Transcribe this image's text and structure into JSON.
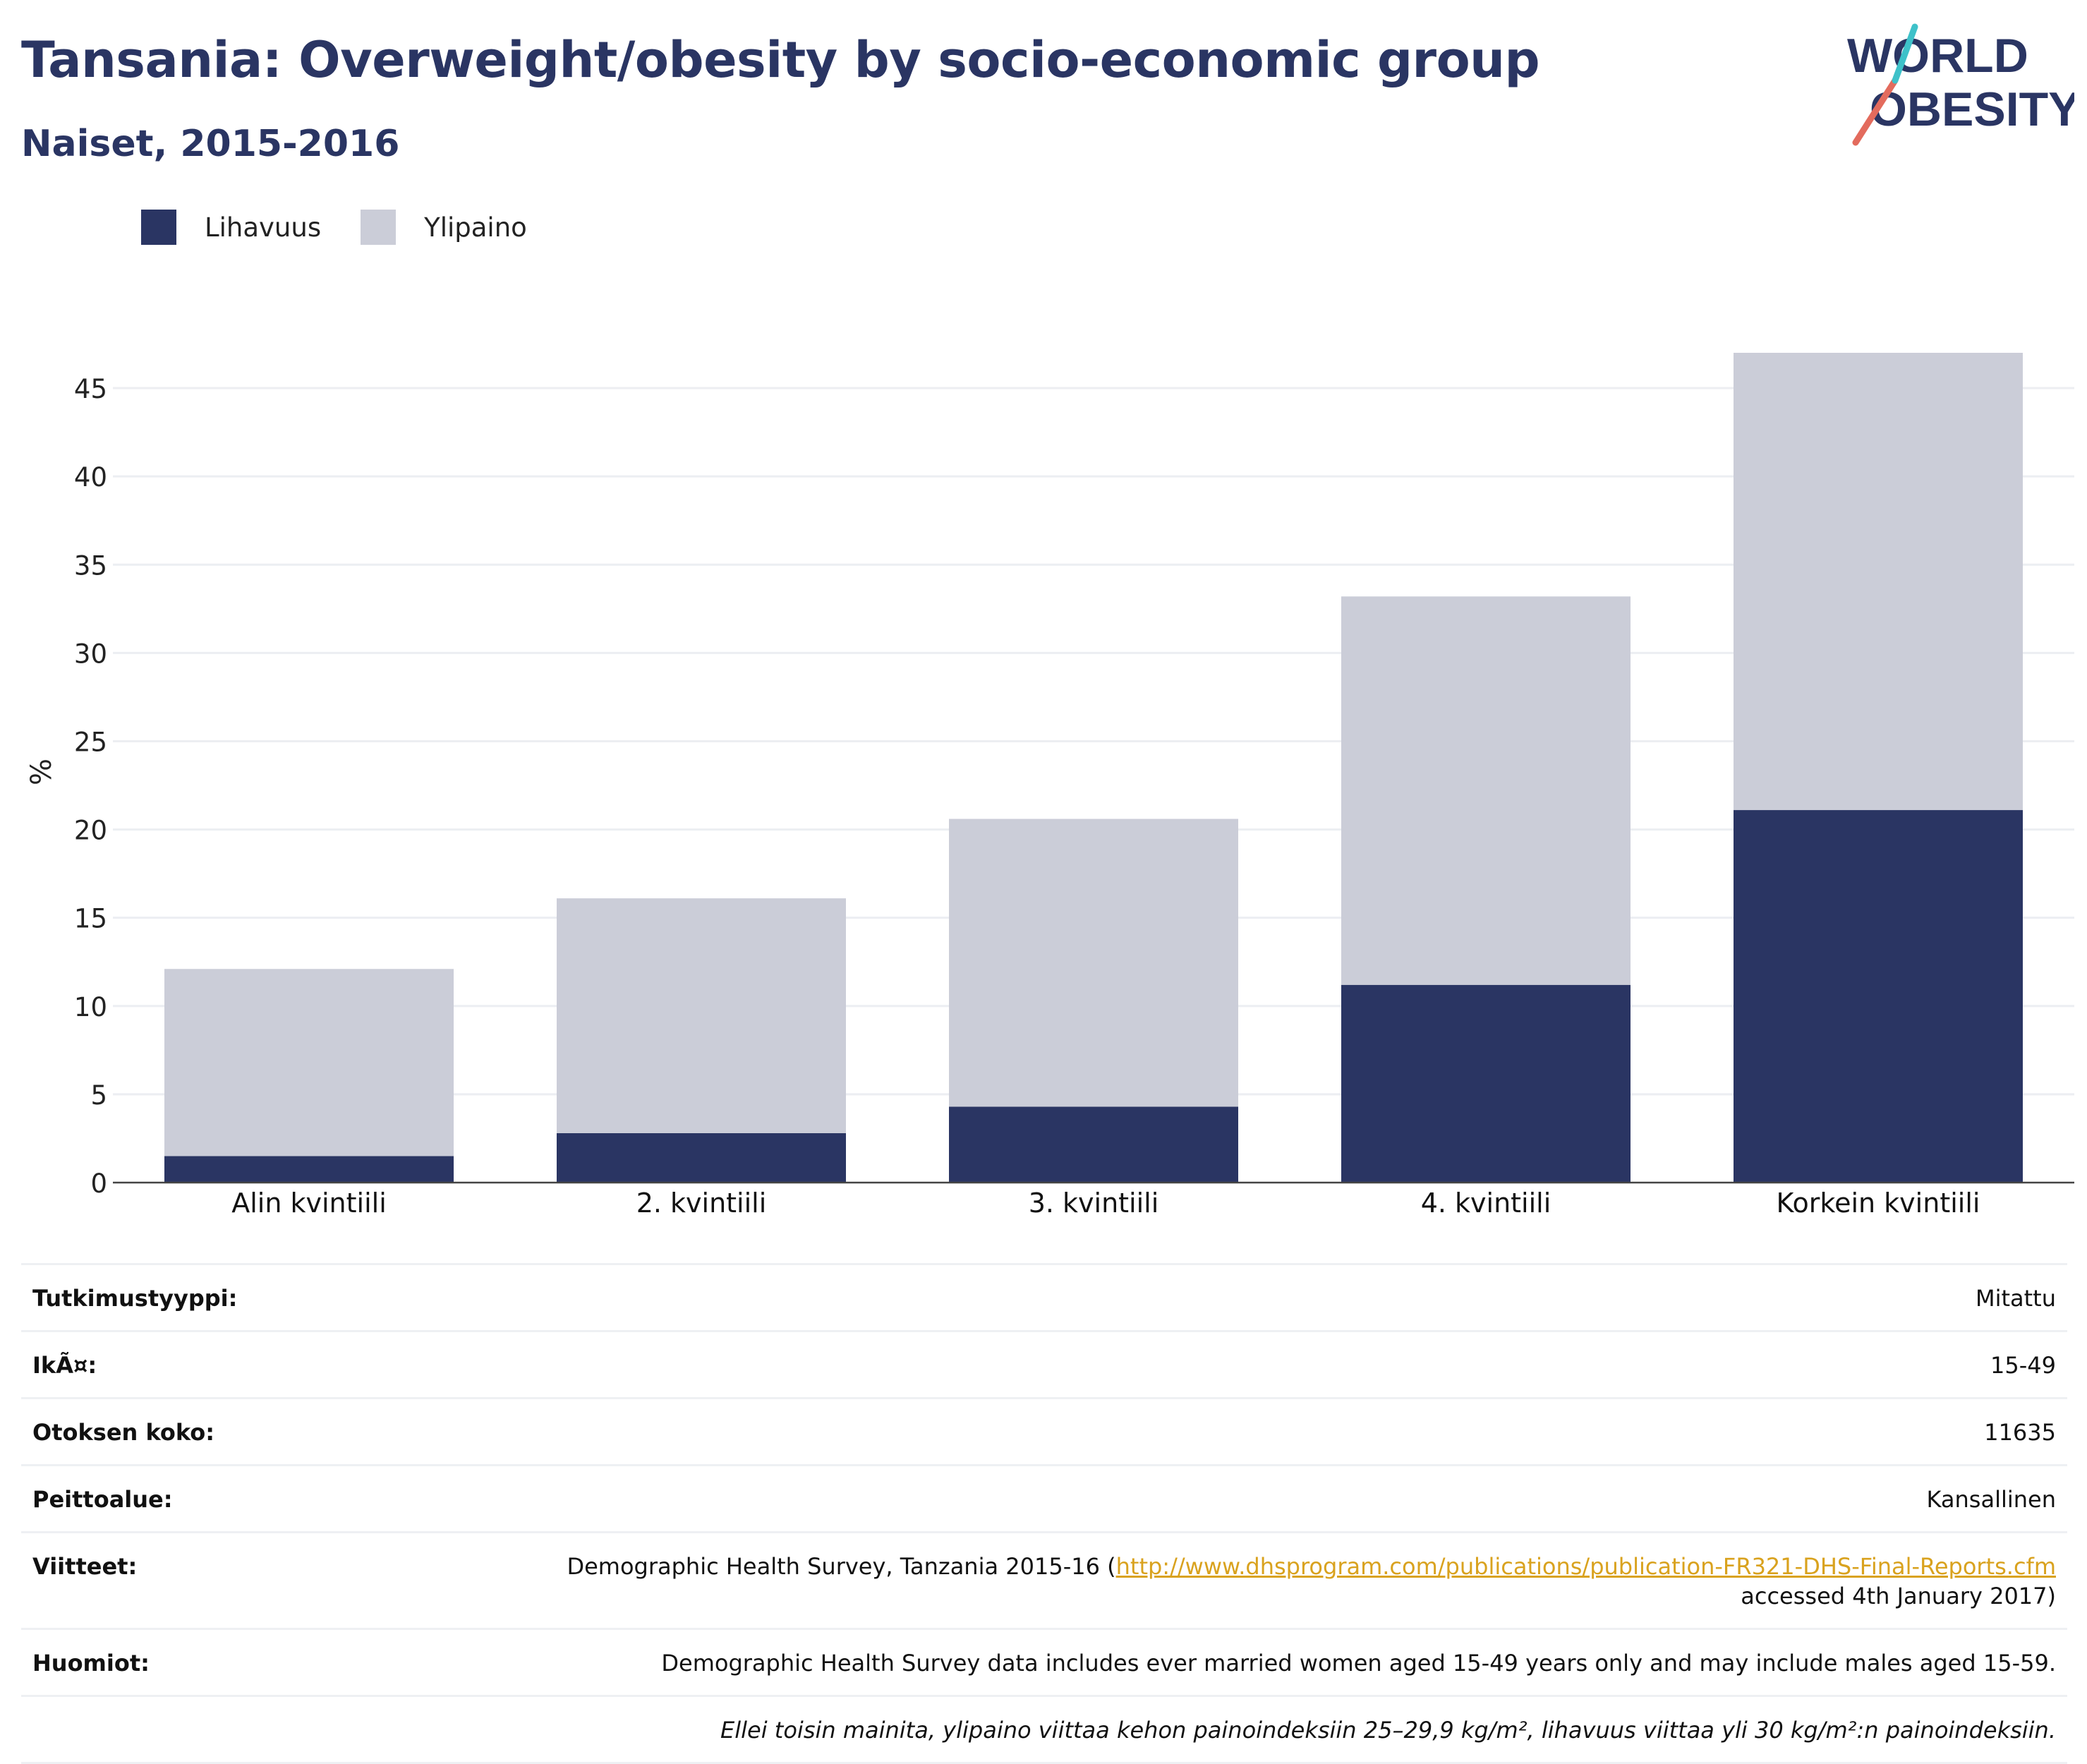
{
  "title": "Tansania: Overweight/obesity by socio-economic group",
  "subtitle": "Naiset, 2015-2016",
  "logo": {
    "line1": "WORLD",
    "line2": "OBESITY"
  },
  "colors": {
    "obesity": "#2a3563",
    "overweight": "#cbcdd8",
    "title": "#2a3563",
    "link": "#d9a21e"
  },
  "chart_data": {
    "type": "bar",
    "stacked": true,
    "categories": [
      "Alin kvintiili",
      "2. kvintiili",
      "3. kvintiili",
      "4. kvintiili",
      "Korkein kvintiili"
    ],
    "series": [
      {
        "name": "Lihavuus",
        "values": [
          1.5,
          2.8,
          4.3,
          11.2,
          21.1
        ]
      },
      {
        "name": "Ylipaino",
        "values": [
          10.6,
          13.3,
          16.3,
          22.0,
          25.9
        ]
      }
    ],
    "ylabel": "%",
    "ylim": [
      0,
      47
    ],
    "yticks": [
      0,
      5,
      10,
      15,
      20,
      25,
      30,
      35,
      40,
      45
    ],
    "grid": true,
    "legend_position": "top-left"
  },
  "meta": {
    "rows": [
      {
        "key": "Tutkimustyyppi:",
        "value": "Mitattu"
      },
      {
        "key": "IkÃ¤:",
        "value": "15-49"
      },
      {
        "key": "Otoksen koko:",
        "value": "11635"
      },
      {
        "key": "Peittoalue:",
        "value": "Kansallinen"
      }
    ],
    "references": {
      "key": "Viitteet:",
      "prefix": "Demographic Health Survey, Tanzania 2015-16 (",
      "link": "http://www.dhsprogram.com/publications/publication-FR321-DHS-Final-Reports.cfm",
      "suffix": "accessed 4th January 2017)"
    },
    "notes": {
      "key": "Huomiot:",
      "value": "Demographic Health Survey data includes ever married women aged 15-49 years only and may include males aged 15-59."
    },
    "footnote": "Ellei toisin mainita, ylipaino viittaa kehon painoindeksiin 25–29,9 kg/m², lihavuus viittaa yli 30 kg/m²:n painoindeksiin."
  }
}
